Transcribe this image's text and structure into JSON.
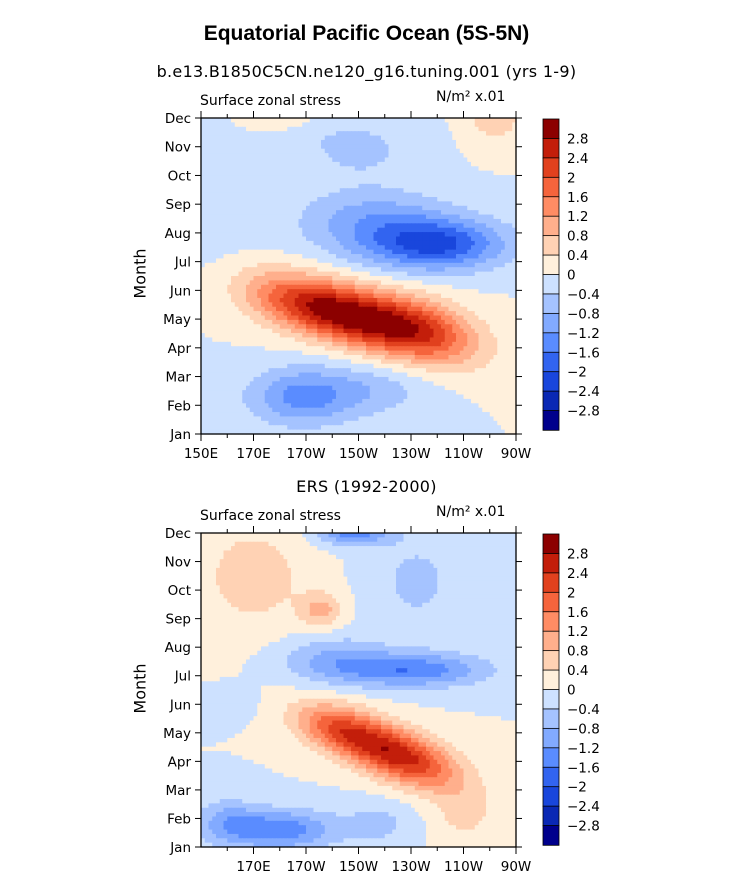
{
  "figure": {
    "title": "Equatorial Pacific Ocean (5S-5N)",
    "colors": [
      "#00008c",
      "#0a28b4",
      "#1946dc",
      "#3264f0",
      "#5a8cff",
      "#82aaff",
      "#a5c3ff",
      "#cde1ff",
      "#fff0dc",
      "#ffd2b4",
      "#ffaf8c",
      "#ff8c64",
      "#f5643c",
      "#e1411e",
      "#c31e0a",
      "#8c0000"
    ]
  },
  "chart_data": [
    {
      "type": "heatmap",
      "title": "b.e13.B1850C5CN.ne120_g16.tuning.001 (yrs 1-9)",
      "left_label": "Surface zonal stress",
      "right_label": "N/m² x.01",
      "ylabel": "Month",
      "xlabel": "",
      "x_range": [
        150,
        270
      ],
      "x_ticks": [
        "150E",
        "170E",
        "170W",
        "150W",
        "130W",
        "110W",
        "90W"
      ],
      "y_ticks": [
        "Jan",
        "Feb",
        "Mar",
        "Apr",
        "May",
        "Jun",
        "Jul",
        "Aug",
        "Sep",
        "Oct",
        "Nov",
        "Dec"
      ],
      "colorbar_labels": [
        "2.8",
        "2.4",
        "2",
        "1.6",
        "1.2",
        "0.8",
        "0.4",
        "0",
        "−0.4",
        "−0.8",
        "−1.2",
        "−1.6",
        "−2",
        "−2.4",
        "−2.8"
      ],
      "grid": false,
      "features": [
        {
          "month": 4.1,
          "lon": 208,
          "value": 2.6,
          "lon_width": 26,
          "month_height": 1.0,
          "tilt_months_per_deg": -0.022
        },
        {
          "month": 3.6,
          "lon": 235,
          "value": 1.8,
          "lon_width": 22,
          "month_height": 1.1,
          "tilt_months_per_deg": -0.02
        },
        {
          "month": 4.6,
          "lon": 185,
          "value": 1.2,
          "lon_width": 22,
          "month_height": 1.0,
          "tilt_months_per_deg": -0.02
        },
        {
          "month": 6.6,
          "lon": 240,
          "value": -2.0,
          "lon_width": 26,
          "month_height": 0.9,
          "tilt_months_per_deg": 0.0
        },
        {
          "month": 7.4,
          "lon": 215,
          "value": -1.0,
          "lon_width": 28,
          "month_height": 1.2,
          "tilt_months_per_deg": 0.0
        },
        {
          "month": 9.8,
          "lon": 210,
          "value": -0.5,
          "lon_width": 20,
          "month_height": 0.8,
          "tilt_months_per_deg": 0.0
        },
        {
          "month": 10.7,
          "lon": 195,
          "value": -0.3,
          "lon_width": 30,
          "month_height": 0.7,
          "tilt_months_per_deg": 0.0
        },
        {
          "month": 11.2,
          "lon": 262,
          "value": 0.8,
          "lon_width": 10,
          "month_height": 1.0,
          "tilt_months_per_deg": 0.0
        },
        {
          "month": 10.9,
          "lon": 180,
          "value": 0.4,
          "lon_width": 20,
          "month_height": 0.5,
          "tilt_months_per_deg": 0.0
        },
        {
          "month": 1.3,
          "lon": 188,
          "value": -1.3,
          "lon_width": 20,
          "month_height": 1.0,
          "tilt_months_per_deg": 0.0
        },
        {
          "month": 1.5,
          "lon": 215,
          "value": -0.6,
          "lon_width": 22,
          "month_height": 0.9,
          "tilt_months_per_deg": 0.0
        },
        {
          "month": 8.5,
          "lon": 155,
          "value": -0.3,
          "lon_width": 14,
          "month_height": 2.5,
          "tilt_months_per_deg": 0.0
        }
      ]
    },
    {
      "type": "heatmap",
      "title": "ERS (1992-2000)",
      "left_label": "Surface zonal stress",
      "right_label": "N/m² x.01",
      "ylabel": "Month",
      "xlabel": "",
      "x_range": [
        150,
        270
      ],
      "x_ticks": [
        "170E",
        "170W",
        "150W",
        "130W",
        "110W",
        "90W"
      ],
      "y_ticks": [
        "Jan",
        "Feb",
        "Mar",
        "Apr",
        "May",
        "Jun",
        "Jul",
        "Aug",
        "Sep",
        "Oct",
        "Nov",
        "Dec"
      ],
      "colorbar_labels": [
        "2.8",
        "2.4",
        "2",
        "1.6",
        "1.2",
        "0.8",
        "0.4",
        "0",
        "−0.4",
        "−0.8",
        "−1.2",
        "−1.6",
        "−2",
        "−2.4",
        "−2.8"
      ],
      "grid": false,
      "features": [
        {
          "month": 3.0,
          "lon": 230,
          "value": 2.0,
          "lon_width": 20,
          "month_height": 0.9,
          "tilt_months_per_deg": -0.025
        },
        {
          "month": 3.8,
          "lon": 212,
          "value": 1.4,
          "lon_width": 20,
          "month_height": 0.9,
          "tilt_months_per_deg": -0.025
        },
        {
          "month": 4.2,
          "lon": 200,
          "value": 1.0,
          "lon_width": 16,
          "month_height": 0.8,
          "tilt_months_per_deg": -0.02
        },
        {
          "month": 6.2,
          "lon": 230,
          "value": -1.5,
          "lon_width": 28,
          "month_height": 0.6,
          "tilt_months_per_deg": 0.0
        },
        {
          "month": 6.6,
          "lon": 200,
          "value": -0.8,
          "lon_width": 20,
          "month_height": 0.8,
          "tilt_months_per_deg": 0.0
        },
        {
          "month": 0.6,
          "lon": 180,
          "value": -1.5,
          "lon_width": 20,
          "month_height": 0.7,
          "tilt_months_per_deg": 0.0
        },
        {
          "month": 0.9,
          "lon": 160,
          "value": -0.8,
          "lon_width": 12,
          "month_height": 0.8,
          "tilt_months_per_deg": 0.0
        },
        {
          "month": 0.8,
          "lon": 218,
          "value": -0.5,
          "lon_width": 16,
          "month_height": 0.8,
          "tilt_months_per_deg": 0.0
        },
        {
          "month": 11.1,
          "lon": 208,
          "value": -1.6,
          "lon_width": 14,
          "month_height": 0.5,
          "tilt_months_per_deg": 0.0
        },
        {
          "month": 9.3,
          "lon": 232,
          "value": -0.5,
          "lon_width": 18,
          "month_height": 1.8,
          "tilt_months_per_deg": 0.0
        },
        {
          "month": 9.5,
          "lon": 170,
          "value": 0.6,
          "lon_width": 22,
          "month_height": 2.0,
          "tilt_months_per_deg": 0.0
        },
        {
          "month": 8.3,
          "lon": 196,
          "value": 0.9,
          "lon_width": 8,
          "month_height": 0.6,
          "tilt_months_per_deg": 0.0
        },
        {
          "month": 1.1,
          "lon": 250,
          "value": 0.5,
          "lon_width": 14,
          "month_height": 1.0,
          "tilt_months_per_deg": 0.0
        },
        {
          "month": 5.0,
          "lon": 160,
          "value": -0.3,
          "lon_width": 10,
          "month_height": 0.5,
          "tilt_months_per_deg": 0.0
        }
      ]
    }
  ]
}
